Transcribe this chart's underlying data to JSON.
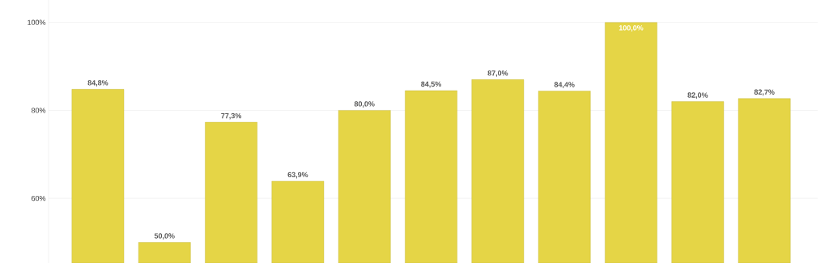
{
  "chart_data": {
    "type": "bar",
    "categories": [
      null,
      null,
      null,
      null,
      null,
      null,
      null,
      null,
      null,
      null,
      null
    ],
    "values": [
      84.8,
      50.0,
      77.3,
      63.9,
      80.0,
      84.5,
      87.0,
      84.4,
      100.0,
      82.0,
      82.7
    ],
    "value_labels": [
      "84,8%",
      "50,0%",
      "77,3%",
      "63,9%",
      "80,0%",
      "84,5%",
      "87,0%",
      "84,4%",
      "100,0%",
      "82,0%",
      "82,7%"
    ],
    "color": "#e5d546",
    "ylim": [
      45.3,
      105.1
    ],
    "yticks": [
      {
        "value": 60,
        "label": "60%"
      },
      {
        "value": 80,
        "label": "80%"
      },
      {
        "value": 100,
        "label": "100%"
      }
    ],
    "grid": "y",
    "tick_labels": "y"
  }
}
